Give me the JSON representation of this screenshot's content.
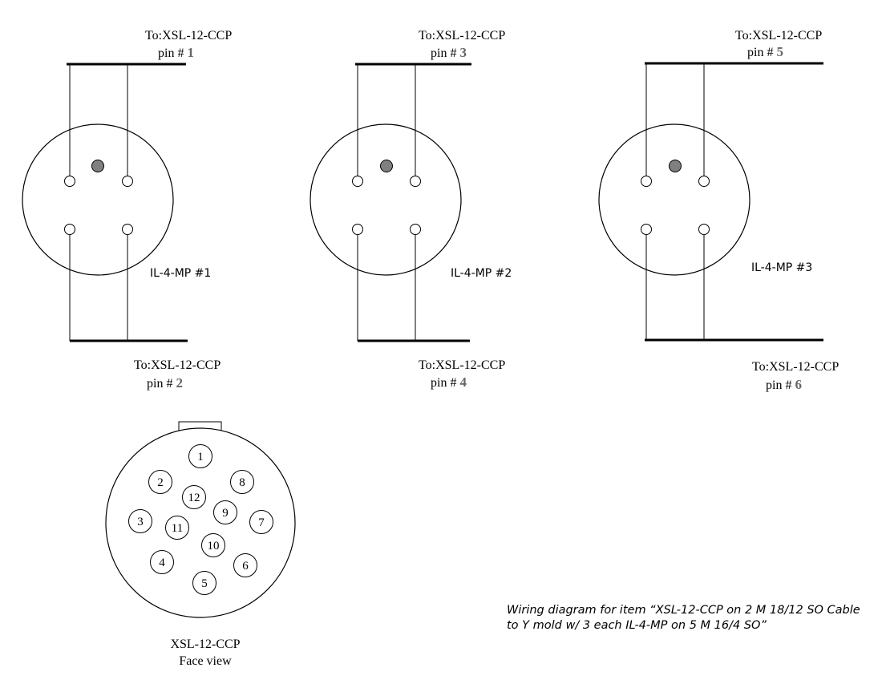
{
  "connectors": [
    {
      "label": "IL-4-MP #1",
      "top": {
        "to": "To:XSL-12-CCP",
        "pin_prefix": "pin # ",
        "pin": "1"
      },
      "bottom": {
        "to": "To:XSL-12-CCP",
        "pin_prefix": "pin # ",
        "pin": "2"
      }
    },
    {
      "label": "IL-4-MP #2",
      "top": {
        "to": "To:XSL-12-CCP",
        "pin_prefix": "pin # ",
        "pin": "3"
      },
      "bottom": {
        "to": "To:XSL-12-CCP",
        "pin_prefix": "pin # ",
        "pin": "4"
      }
    },
    {
      "label": "IL-4-MP #3",
      "top": {
        "to": "To:XSL-12-CCP",
        "pin_prefix": "pin # ",
        "pin": "5"
      },
      "bottom": {
        "to": "To:XSL-12-CCP",
        "pin_prefix": "pin # ",
        "pin": "6"
      }
    }
  ],
  "face_view": {
    "pins": [
      "1",
      "2",
      "3",
      "4",
      "5",
      "6",
      "7",
      "8",
      "9",
      "10",
      "11",
      "12"
    ],
    "title": "XSL-12-CCP",
    "subtitle": "Face view"
  },
  "caption": {
    "line1": "Wiring diagram for item “XSL-12-CCP on 2 M 18/12 SO Cable",
    "line2": "to Y mold w/ 3 each IL-4-MP on 5 M 16/4 SO”"
  },
  "colors": {
    "line": "#000000",
    "key_pin_fill": "#808080",
    "pin_number": "#666666"
  }
}
